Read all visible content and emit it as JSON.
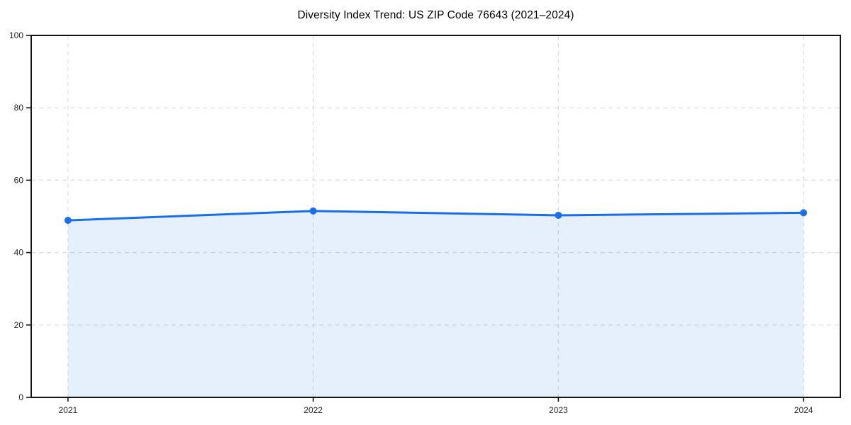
{
  "chart_data": {
    "type": "area",
    "title": "Diversity Index Trend: US ZIP Code 76643 (2021–2024)",
    "xlabel": "",
    "ylabel": "",
    "x": [
      2021,
      2022,
      2023,
      2024
    ],
    "series": [
      {
        "name": "Diversity Index",
        "values": [
          48.9,
          51.5,
          50.3,
          51.0
        ]
      }
    ],
    "xticks": [
      2021,
      2022,
      2023,
      2024
    ],
    "xtick_labels": [
      "2021",
      "2022",
      "2023",
      "2024"
    ],
    "yticks": [
      0,
      20,
      40,
      60,
      80,
      100
    ],
    "ytick_labels": [
      "0",
      "20",
      "40",
      "60",
      "80",
      "100"
    ],
    "xlim": [
      2020.85,
      2024.15
    ],
    "ylim": [
      0,
      100
    ],
    "grid": true,
    "grid_style": "dashed",
    "legend": "none",
    "colors": {
      "line": "#1a6ee8",
      "marker": "#1a6ee8",
      "fill": "rgba(26, 110, 232, 0.11)",
      "grid": "#dedede",
      "spine": "#141414",
      "tick": "#141414",
      "tick_label": "#262626",
      "title": "#000000",
      "background": "#ffffff"
    }
  }
}
